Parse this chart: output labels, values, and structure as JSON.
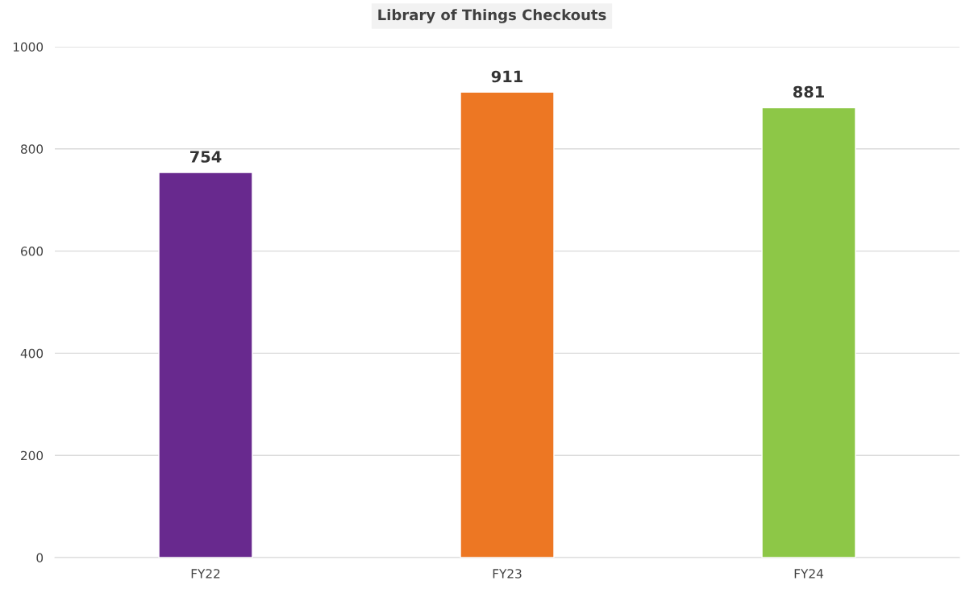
{
  "chart_data": {
    "type": "bar",
    "title": "Library of Things Checkouts",
    "categories": [
      "FY22",
      "FY23",
      "FY24"
    ],
    "values": [
      754,
      911,
      881
    ],
    "colors": [
      "#68298e",
      "#ed7723",
      "#8dc747"
    ],
    "ylim": [
      0,
      1000
    ],
    "yticks": [
      0,
      200,
      400,
      600,
      800,
      1000
    ],
    "grid": "y",
    "data_labels": true,
    "legend": false
  }
}
